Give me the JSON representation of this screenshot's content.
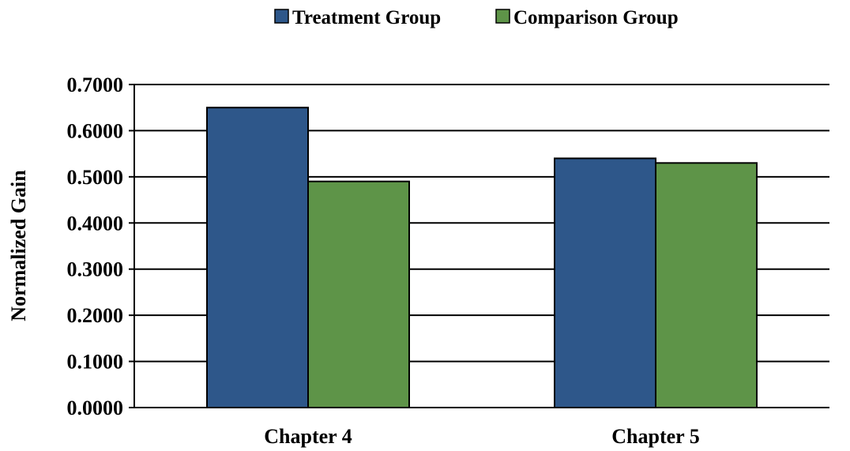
{
  "chart_data": {
    "type": "bar",
    "categories": [
      "Chapter 4",
      "Chapter 5"
    ],
    "series": [
      {
        "name": "Treatment Group",
        "values": [
          0.65,
          0.54
        ],
        "color": "#2E578A"
      },
      {
        "name": "Comparison Group",
        "values": [
          0.49,
          0.53
        ],
        "color": "#5E9448"
      }
    ],
    "title": "",
    "xlabel": "",
    "ylabel": "Normalized Gain",
    "ylim": [
      0,
      0.7
    ],
    "yticks": [
      "0.0000",
      "0.1000",
      "0.2000",
      "0.3000",
      "0.4000",
      "0.5000",
      "0.6000",
      "0.7000"
    ],
    "grid": true,
    "legend": "top-center"
  }
}
